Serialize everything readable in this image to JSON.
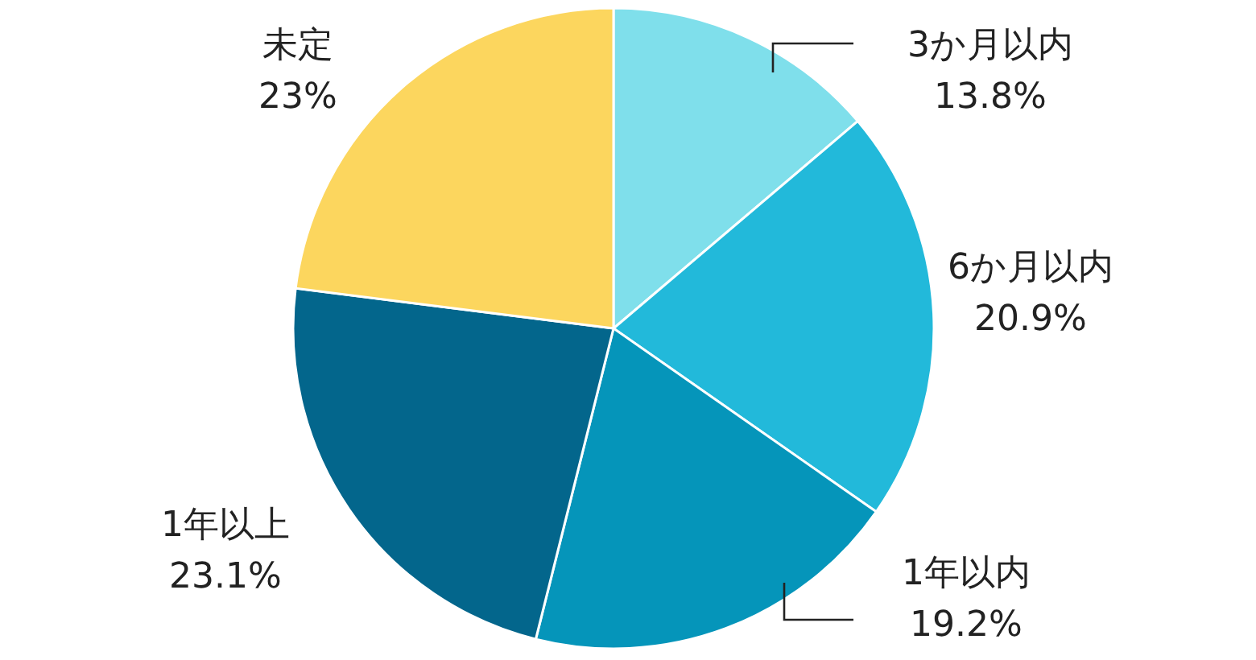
{
  "chart_data": {
    "type": "pie",
    "categories": [
      "3か月以内",
      "6か月以内",
      "1年以内",
      "1年以上",
      "未定"
    ],
    "values": [
      13.8,
      20.9,
      19.2,
      23.1,
      23
    ],
    "value_labels": [
      "13.8%",
      "20.9%",
      "19.2%",
      "23.1%",
      "23%"
    ],
    "colors": [
      "#7fdfeb",
      "#22b9da",
      "#0595ba",
      "#03668c",
      "#fcd65e"
    ]
  }
}
